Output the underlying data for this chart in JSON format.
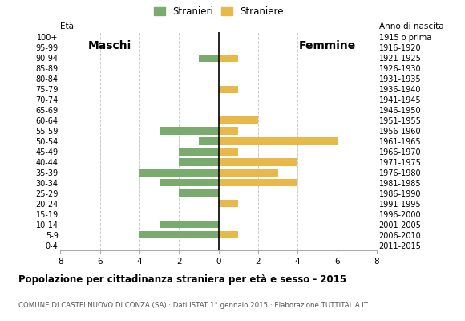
{
  "age_groups": [
    "100+",
    "95-99",
    "90-94",
    "85-89",
    "80-84",
    "75-79",
    "70-74",
    "65-69",
    "60-64",
    "55-59",
    "50-54",
    "45-49",
    "40-44",
    "35-39",
    "30-34",
    "25-29",
    "20-24",
    "15-19",
    "10-14",
    "5-9",
    "0-4"
  ],
  "birth_years": [
    "1915 o prima",
    "1916-1920",
    "1921-1925",
    "1926-1930",
    "1931-1935",
    "1936-1940",
    "1941-1945",
    "1946-1950",
    "1951-1955",
    "1956-1960",
    "1961-1965",
    "1966-1970",
    "1971-1975",
    "1976-1980",
    "1981-1985",
    "1986-1990",
    "1991-1995",
    "1996-2000",
    "2001-2005",
    "2006-2010",
    "2011-2015"
  ],
  "males": [
    0,
    0,
    1,
    0,
    0,
    0,
    0,
    0,
    0,
    3,
    1,
    2,
    2,
    4,
    3,
    2,
    0,
    0,
    3,
    4,
    0
  ],
  "females": [
    0,
    0,
    1,
    0,
    0,
    1,
    0,
    0,
    2,
    1,
    6,
    1,
    4,
    3,
    4,
    0,
    1,
    0,
    0,
    1,
    0
  ],
  "male_color": "#7aab6e",
  "female_color": "#e8b84b",
  "title": "Popolazione per cittadinanza straniera per età e sesso - 2015",
  "subtitle": "COMUNE DI CASTELNUOVO DI CONZA (SA) · Dati ISTAT 1° gennaio 2015 · Elaborazione TUTTITALIA.IT",
  "legend_male": "Stranieri",
  "legend_female": "Straniere",
  "label_eta": "Età",
  "label_maschi": "Maschi",
  "label_femmine": "Femmine",
  "label_anno": "Anno di nascita",
  "xlim": 8,
  "background_color": "#ffffff",
  "grid_color": "#cccccc"
}
